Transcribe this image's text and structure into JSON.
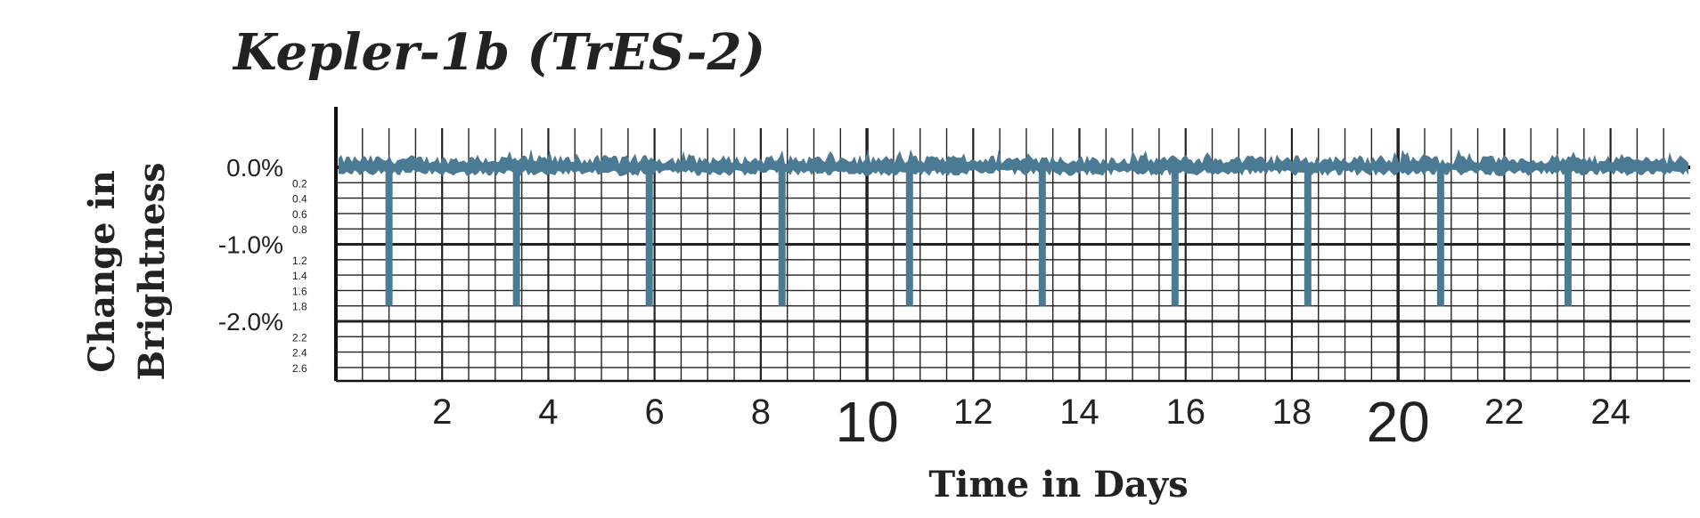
{
  "chart_data": {
    "type": "line",
    "title": "Kepler-1b (TrES-2)",
    "xlabel": "Time in Days",
    "ylabel_lines": [
      "Change in",
      "Brightness"
    ],
    "xlim": [
      0,
      25.5
    ],
    "ylim": [
      -2.6,
      0.3
    ],
    "x_ticks": [
      {
        "value": 2,
        "label": "2",
        "size": "normal"
      },
      {
        "value": 4,
        "label": "4",
        "size": "normal"
      },
      {
        "value": 6,
        "label": "6",
        "size": "normal"
      },
      {
        "value": 8,
        "label": "8",
        "size": "normal"
      },
      {
        "value": 10,
        "label": "10",
        "size": "large"
      },
      {
        "value": 12,
        "label": "12",
        "size": "normal"
      },
      {
        "value": 14,
        "label": "14",
        "size": "normal"
      },
      {
        "value": 16,
        "label": "16",
        "size": "normal"
      },
      {
        "value": 18,
        "label": "18",
        "size": "normal"
      },
      {
        "value": 20,
        "label": "20",
        "size": "large"
      },
      {
        "value": 22,
        "label": "22",
        "size": "normal"
      },
      {
        "value": 24,
        "label": "24",
        "size": "normal"
      }
    ],
    "y_ticks_major": [
      {
        "value": 0.0,
        "label": "0.0%"
      },
      {
        "value": -1.0,
        "label": "-1.0%"
      },
      {
        "value": -2.0,
        "label": "-2.0%"
      }
    ],
    "y_ticks_minor": [
      {
        "value": -0.2,
        "label": "0.2"
      },
      {
        "value": -0.4,
        "label": "0.4"
      },
      {
        "value": -0.6,
        "label": "0.6"
      },
      {
        "value": -0.8,
        "label": "0.8"
      },
      {
        "value": -1.2,
        "label": "1.2"
      },
      {
        "value": -1.4,
        "label": "1.4"
      },
      {
        "value": -1.6,
        "label": "1.6"
      },
      {
        "value": -1.8,
        "label": "1.8"
      },
      {
        "value": -2.2,
        "label": "2.2"
      },
      {
        "value": -2.4,
        "label": "2.4"
      },
      {
        "value": -2.6,
        "label": "2.6"
      }
    ],
    "baseline": 0.0,
    "noise_amplitude": 0.12,
    "transit_depth": -1.8,
    "transit_times": [
      1.0,
      3.4,
      5.9,
      8.4,
      10.8,
      13.3,
      15.8,
      18.3,
      20.8,
      23.2
    ],
    "grid": true,
    "series_color": "#4a7a94",
    "grid_color": "#222222"
  }
}
